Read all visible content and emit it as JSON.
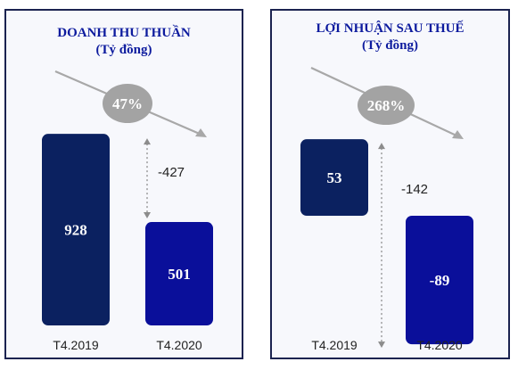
{
  "chart_data": [
    {
      "type": "bar",
      "title": "DOANH THU THUẦN",
      "subtitle": "(Tỷ đồng)",
      "categories": [
        "T4.2019",
        "T4.2020"
      ],
      "values": [
        928,
        501
      ],
      "difference_label": "-427",
      "change_badge": "47%",
      "colors": [
        "#0b2160",
        "#0a0f9a"
      ]
    },
    {
      "type": "bar",
      "title": "LỢI NHUẬN SAU THUẾ",
      "subtitle": "(Tỷ đồng)",
      "categories": [
        "T4.2019",
        "T4.2020"
      ],
      "values": [
        53,
        -89
      ],
      "difference_label": "-142",
      "change_badge": "268%",
      "colors": [
        "#0b2160",
        "#0a0f9a"
      ]
    }
  ],
  "style": {
    "title_color": "#0d1b9e",
    "panel_border": "#1b2350",
    "badge_color": "#a3a3a3",
    "arrow_color": "#a8a8a8"
  }
}
